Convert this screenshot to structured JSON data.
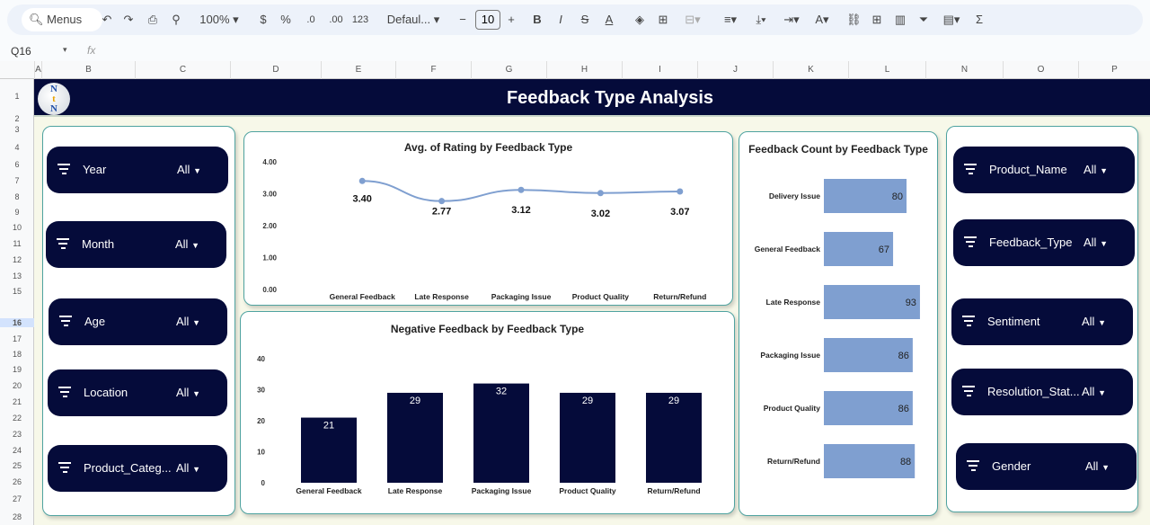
{
  "toolbar": {
    "menus": "Menus",
    "zoom": "100%",
    "currency": "$",
    "percent": "%",
    "dec_dec": ".0",
    "inc_dec": ".00",
    "format_123": "123",
    "font": "Defaul...",
    "font_size": "10",
    "minus": "−",
    "plus": "+",
    "bold": "B",
    "italic": "I"
  },
  "formula_bar": {
    "cell_ref": "Q16",
    "fx": "fx"
  },
  "columns": [
    "A",
    "B",
    "C",
    "D",
    "E",
    "F",
    "G",
    "H",
    "I",
    "J",
    "K",
    "L",
    "N",
    "O",
    "P"
  ],
  "rows": [
    "1",
    "2",
    "3",
    "4",
    "6",
    "7",
    "8",
    "9",
    "10",
    "11",
    "12",
    "13",
    "15",
    "16",
    "17",
    "18",
    "19",
    "20",
    "21",
    "22",
    "23",
    "24",
    "25",
    "26",
    "27",
    "28"
  ],
  "dashboard": {
    "title": "Feedback Type Analysis",
    "logo_text": "NtN"
  },
  "slicers_left": [
    {
      "label": "Year",
      "value": "All"
    },
    {
      "label": "Month",
      "value": "All"
    },
    {
      "label": "Age",
      "value": "All"
    },
    {
      "label": "Location",
      "value": "All"
    },
    {
      "label": "Product_Categ...",
      "value": "All"
    }
  ],
  "slicers_right": [
    {
      "label": "Product_Name",
      "value": "All"
    },
    {
      "label": "Feedback_Type",
      "value": "All"
    },
    {
      "label": "Sentiment",
      "value": "All"
    },
    {
      "label": "Resolution_Stat...",
      "value": "All"
    },
    {
      "label": "Gender",
      "value": "All"
    }
  ],
  "chart_data": [
    {
      "type": "line",
      "title": "Avg. of Rating by Feedback Type",
      "categories": [
        "General Feedback",
        "Late Response",
        "Packaging Issue",
        "Product Quality",
        "Return/Refund"
      ],
      "values": [
        3.4,
        2.77,
        3.12,
        3.02,
        3.07
      ],
      "labels": [
        "3.40",
        "2.77",
        "3.12",
        "3.02",
        "3.07"
      ],
      "yticks": [
        "0.00",
        "1.00",
        "2.00",
        "3.00",
        "4.00"
      ],
      "ylim": [
        0,
        4
      ],
      "color": "#7f9fd0"
    },
    {
      "type": "bar",
      "title": "Negative Feedback by Feedback Type",
      "categories": [
        "General Feedback",
        "Late Response",
        "Packaging Issue",
        "Product Quality",
        "Return/Refund"
      ],
      "values": [
        21,
        29,
        32,
        29,
        29
      ],
      "yticks": [
        "0",
        "10",
        "20",
        "30",
        "40"
      ],
      "ylim": [
        0,
        40
      ],
      "color": "#050b3a"
    },
    {
      "type": "bar",
      "orientation": "horizontal",
      "title": "Feedback Count by Feedback Type",
      "categories": [
        "Delivery Issue",
        "General Feedback",
        "Late Response",
        "Packaging Issue",
        "Product Quality",
        "Return/Refund"
      ],
      "values": [
        80,
        67,
        93,
        86,
        86,
        88
      ],
      "xlim": [
        0,
        100
      ],
      "color": "#7f9fd0"
    }
  ]
}
